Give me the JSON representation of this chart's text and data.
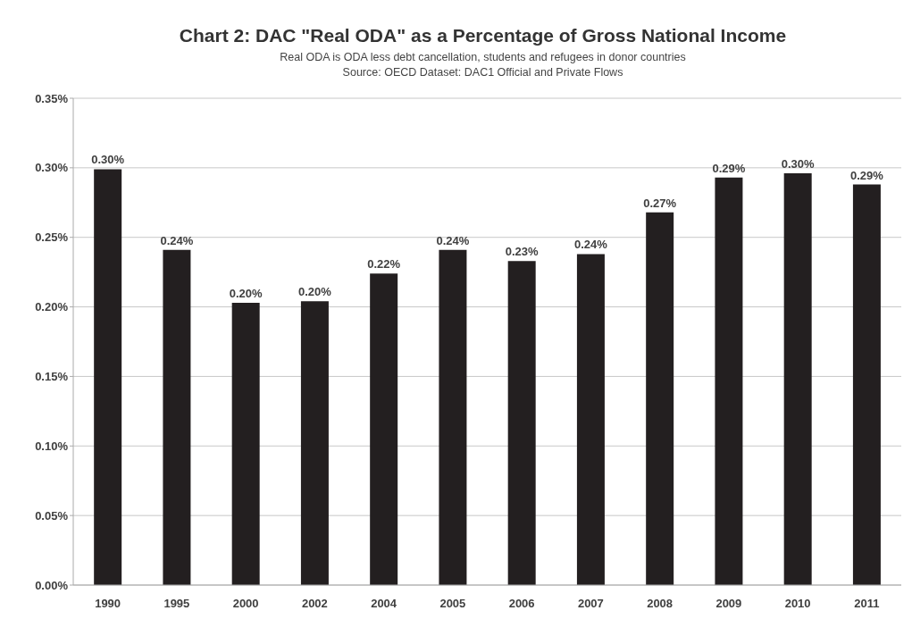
{
  "chart_data": {
    "type": "bar",
    "title": "Chart 2:  DAC \"Real ODA\" as a Percentage of Gross National Income",
    "subtitle": "Real ODA is ODA less debt cancellation, students and refugees in donor countries",
    "annotations": [
      "Source: OECD Dataset: DAC1 Official and Private Flows"
    ],
    "categories": [
      "1990",
      "1995",
      "2000",
      "2002",
      "2004",
      "2005",
      "2006",
      "2007",
      "2008",
      "2009",
      "2010",
      "2011"
    ],
    "values": [
      0.299,
      0.241,
      0.203,
      0.204,
      0.224,
      0.241,
      0.233,
      0.238,
      0.268,
      0.293,
      0.296,
      0.288
    ],
    "value_labels": [
      "0.30%",
      "0.24%",
      "0.20%",
      "0.20%",
      "0.22%",
      "0.24%",
      "0.23%",
      "0.24%",
      "0.27%",
      "0.29%",
      "0.30%",
      "0.29%"
    ],
    "color": "#231f20",
    "ylim": [
      0,
      0.35
    ],
    "yticks": [
      {
        "value": 0,
        "label": "0.00%"
      },
      {
        "value": 0.05,
        "label": "0.05%"
      },
      {
        "value": 0.1,
        "label": "0.10%"
      },
      {
        "value": 0.15,
        "label": "0.15%"
      },
      {
        "value": 0.2,
        "label": "0.20%"
      },
      {
        "value": 0.25,
        "label": "0.25%"
      },
      {
        "value": 0.3,
        "label": "0.30%"
      },
      {
        "value": 0.35,
        "label": "0.35%"
      }
    ],
    "grid": "y"
  }
}
